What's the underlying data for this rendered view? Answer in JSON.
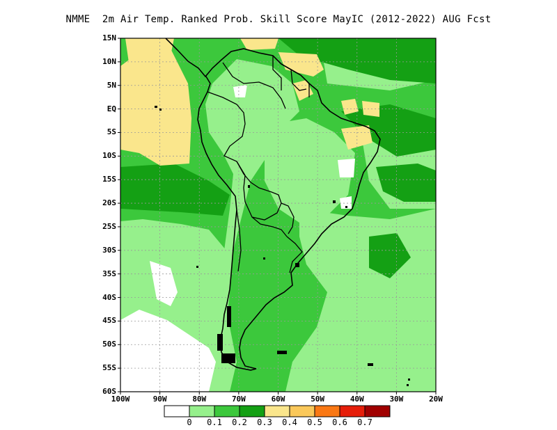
{
  "title": "NMME  2m Air Temp. Ranked Prob. Skill Score MayIC (2012-2022) AUG Fcst",
  "map": {
    "lon_range": [
      -100,
      -20
    ],
    "lat_range": [
      -60,
      15
    ],
    "lat_ticks": [
      {
        "value": 15,
        "label": "15N"
      },
      {
        "value": 10,
        "label": "10N"
      },
      {
        "value": 5,
        "label": "5N"
      },
      {
        "value": 0,
        "label": "EQ"
      },
      {
        "value": -5,
        "label": "5S"
      },
      {
        "value": -10,
        "label": "10S"
      },
      {
        "value": -15,
        "label": "15S"
      },
      {
        "value": -20,
        "label": "20S"
      },
      {
        "value": -25,
        "label": "25S"
      },
      {
        "value": -30,
        "label": "30S"
      },
      {
        "value": -35,
        "label": "35S"
      },
      {
        "value": -40,
        "label": "40S"
      },
      {
        "value": -45,
        "label": "45S"
      },
      {
        "value": -50,
        "label": "50S"
      },
      {
        "value": -55,
        "label": "55S"
      },
      {
        "value": -60,
        "label": "60S"
      }
    ],
    "lon_ticks": [
      {
        "value": -100,
        "label": "100W"
      },
      {
        "value": -90,
        "label": "90W"
      },
      {
        "value": -80,
        "label": "80W"
      },
      {
        "value": -70,
        "label": "70W"
      },
      {
        "value": -60,
        "label": "60W"
      },
      {
        "value": -50,
        "label": "50W"
      },
      {
        "value": -40,
        "label": "40W"
      },
      {
        "value": -30,
        "label": "30W"
      },
      {
        "value": -20,
        "label": "20W"
      }
    ],
    "grid": true
  },
  "colorbar": {
    "colors": [
      "#ffffff",
      "#96f08c",
      "#3cc83c",
      "#14a014",
      "#fae68c",
      "#fac85a",
      "#fa7814",
      "#e61e0a",
      "#a00000"
    ],
    "labels": [
      "0",
      "0.1",
      "0.2",
      "0.3",
      "0.4",
      "0.5",
      "0.6",
      "0.7"
    ]
  }
}
